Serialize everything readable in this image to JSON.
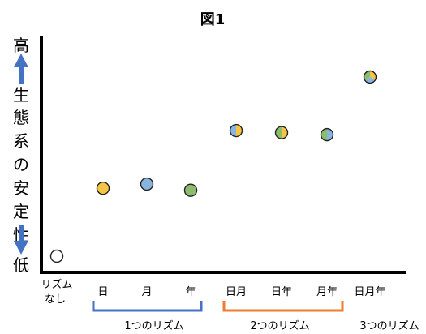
{
  "chart_data": {
    "type": "scatter",
    "title": "図1",
    "ylabel": {
      "top": "高",
      "middle": [
        "生",
        "態",
        "系",
        "の",
        "安",
        "定",
        "性"
      ],
      "bottom": "低"
    },
    "ylim": [
      0,
      10
    ],
    "grid": false,
    "legend": "none",
    "x_labels": [
      [
        "リズム",
        "なし"
      ],
      [
        "日"
      ],
      [
        "月"
      ],
      [
        "年"
      ],
      [
        "日月"
      ],
      [
        "日年"
      ],
      [
        "月年"
      ],
      [
        "日月年"
      ]
    ],
    "groups": [
      {
        "label": "1つのリズム",
        "from": 1,
        "to": 3,
        "color": "#4472c4"
      },
      {
        "label": "2つのリズム",
        "from": 4,
        "to": 6,
        "color": "#ed7d31"
      },
      {
        "label": "3つのリズム",
        "from": 7,
        "to": 7,
        "color": null
      }
    ],
    "points": [
      {
        "x": 0,
        "y": 0.3,
        "colors": [
          "#ffffff"
        ]
      },
      {
        "x": 1,
        "y": 3.6,
        "colors": [
          "#f6c546"
        ]
      },
      {
        "x": 2,
        "y": 3.8,
        "colors": [
          "#8ab4e0"
        ]
      },
      {
        "x": 3,
        "y": 3.5,
        "colors": [
          "#8cbd6c"
        ]
      },
      {
        "x": 4,
        "y": 6.4,
        "colors": [
          "#f6c546",
          "#8ab4e0"
        ]
      },
      {
        "x": 5,
        "y": 6.3,
        "colors": [
          "#f6c546",
          "#8cbd6c"
        ]
      },
      {
        "x": 6,
        "y": 6.2,
        "colors": [
          "#8ab4e0",
          "#8cbd6c"
        ]
      },
      {
        "x": 7,
        "y": 9.0,
        "colors": [
          "#f6c546",
          "#8ab4e0",
          "#8cbd6c"
        ]
      }
    ],
    "arrow_color": "#4472c4"
  }
}
